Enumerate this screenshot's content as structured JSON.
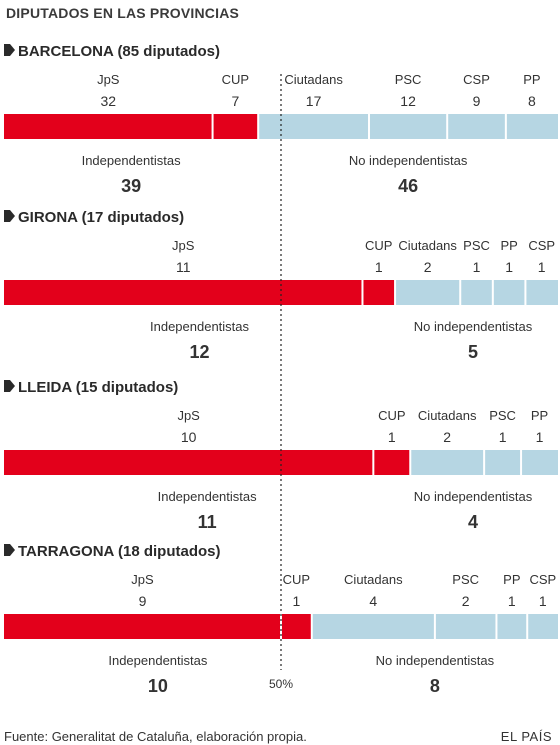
{
  "header": "DIPUTADOS EN LAS PROVINCIAS",
  "footer": {
    "source": "Fuente: Generalitat de Cataluña, elaboración propia.",
    "brand": "EL PAÍS"
  },
  "colors": {
    "independentistas": "#e3001b",
    "no_independentistas": "#b6d6e3",
    "text": "#333333",
    "title": "#2a2a2a",
    "separator": "#ffffff"
  },
  "chart_data": {
    "type": "bar",
    "orientation": "horizontal-stacked",
    "reference_line": {
      "value": 0.5,
      "label": "50%"
    },
    "group_labels": {
      "independentistas": "Independentistas",
      "no_independentistas": "No independentistas"
    },
    "provinces": [
      {
        "title": "BARCELONA (85 diputados)",
        "total": 85,
        "independentistas": 39,
        "no_independentistas": 46,
        "parties": [
          {
            "name": "JpS",
            "seats": 32,
            "group": "independentistas"
          },
          {
            "name": "CUP",
            "seats": 7,
            "group": "independentistas"
          },
          {
            "name": "Ciutadans",
            "seats": 17,
            "group": "no_independentistas"
          },
          {
            "name": "PSC",
            "seats": 12,
            "group": "no_independentistas"
          },
          {
            "name": "CSP",
            "seats": 9,
            "group": "no_independentistas"
          },
          {
            "name": "PP",
            "seats": 8,
            "group": "no_independentistas"
          }
        ]
      },
      {
        "title": "GIRONA (17 diputados)",
        "total": 17,
        "independentistas": 12,
        "no_independentistas": 5,
        "parties": [
          {
            "name": "JpS",
            "seats": 11,
            "group": "independentistas"
          },
          {
            "name": "CUP",
            "seats": 1,
            "group": "independentistas"
          },
          {
            "name": "Ciutadans",
            "seats": 2,
            "group": "no_independentistas"
          },
          {
            "name": "PSC",
            "seats": 1,
            "group": "no_independentistas"
          },
          {
            "name": "PP",
            "seats": 1,
            "group": "no_independentistas"
          },
          {
            "name": "CSP",
            "seats": 1,
            "group": "no_independentistas"
          }
        ]
      },
      {
        "title": "LLEIDA (15 diputados)",
        "total": 15,
        "independentistas": 11,
        "no_independentistas": 4,
        "parties": [
          {
            "name": "JpS",
            "seats": 10,
            "group": "independentistas"
          },
          {
            "name": "CUP",
            "seats": 1,
            "group": "independentistas"
          },
          {
            "name": "Ciutadans",
            "seats": 2,
            "group": "no_independentistas"
          },
          {
            "name": "PSC",
            "seats": 1,
            "group": "no_independentistas"
          },
          {
            "name": "PP",
            "seats": 1,
            "group": "no_independentistas"
          }
        ]
      },
      {
        "title": "TARRAGONA (18 diputados)",
        "total": 18,
        "independentistas": 10,
        "no_independentistas": 8,
        "parties": [
          {
            "name": "JpS",
            "seats": 9,
            "group": "independentistas"
          },
          {
            "name": "CUP",
            "seats": 1,
            "group": "independentistas"
          },
          {
            "name": "Ciutadans",
            "seats": 4,
            "group": "no_independentistas"
          },
          {
            "name": "PSC",
            "seats": 2,
            "group": "no_independentistas"
          },
          {
            "name": "PP",
            "seats": 1,
            "group": "no_independentistas"
          },
          {
            "name": "CSP",
            "seats": 1,
            "group": "no_independentistas"
          }
        ]
      }
    ]
  }
}
